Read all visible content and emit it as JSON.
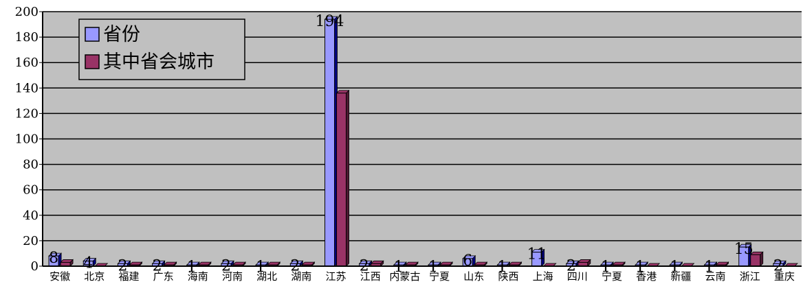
{
  "chart_data": {
    "type": "bar",
    "categories": [
      "安徽",
      "北京",
      "福建",
      "广东",
      "海南",
      "河南",
      "湖北",
      "湖南",
      "江苏",
      "江西",
      "内蒙古",
      "宁夏",
      "山东",
      "陕西",
      "上海",
      "四川",
      "宁夏",
      "香港",
      "新疆",
      "云南",
      "浙江",
      "重庆"
    ],
    "series": [
      {
        "name": "省份",
        "color": "#9999ff",
        "edge": "#000080",
        "labeled": true,
        "values": [
          8,
          4,
          2,
          2,
          1,
          2,
          1,
          2,
          194,
          2,
          1,
          1,
          6,
          1,
          11,
          2,
          1,
          1,
          1,
          1,
          15,
          2
        ]
      },
      {
        "name": "其中省会城市",
        "color": "#993366",
        "edge": "#4d1a33",
        "labeled": false,
        "values": [
          3,
          0,
          1,
          1,
          1,
          1,
          1,
          1,
          136,
          2,
          1,
          1,
          1,
          1,
          0,
          3,
          1,
          0,
          0,
          1,
          9,
          0
        ]
      }
    ],
    "y_ticks": [
      0,
      20,
      40,
      60,
      80,
      100,
      120,
      140,
      160,
      180,
      200
    ],
    "ylim": [
      0,
      200
    ],
    "grid": true,
    "legend_position": "top-left",
    "plot_background": "#c0c0c0"
  }
}
